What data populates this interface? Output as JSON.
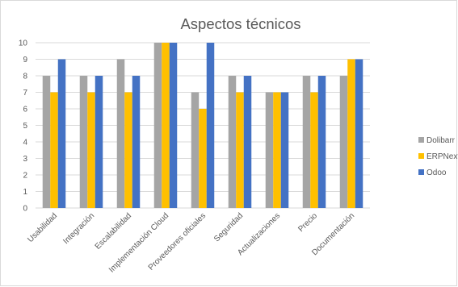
{
  "chart_data": {
    "type": "bar",
    "title": "Aspectos técnicos",
    "xlabel": "",
    "ylabel": "",
    "ylim": [
      0,
      10
    ],
    "yticks": [
      0,
      1,
      2,
      3,
      4,
      5,
      6,
      7,
      8,
      9,
      10
    ],
    "grid": true,
    "legend_position": "right",
    "categories": [
      "Usabilidad",
      "Integración",
      "Escalabilidad",
      "Implementación Cloud",
      "Proveedores oficiales",
      "Seguridad",
      "Actualizaciones",
      "Precio",
      "Documentación"
    ],
    "series": [
      {
        "name": "Dolibarr",
        "color": "#a5a5a5",
        "values": [
          8,
          8,
          9,
          10,
          7,
          8,
          7,
          8,
          8
        ]
      },
      {
        "name": "ERPNext",
        "color": "#ffc000",
        "values": [
          7,
          7,
          7,
          10,
          6,
          7,
          7,
          7,
          9
        ]
      },
      {
        "name": "Odoo",
        "color": "#4472c4",
        "values": [
          9,
          8,
          8,
          10,
          10,
          8,
          7,
          8,
          9
        ]
      }
    ]
  }
}
